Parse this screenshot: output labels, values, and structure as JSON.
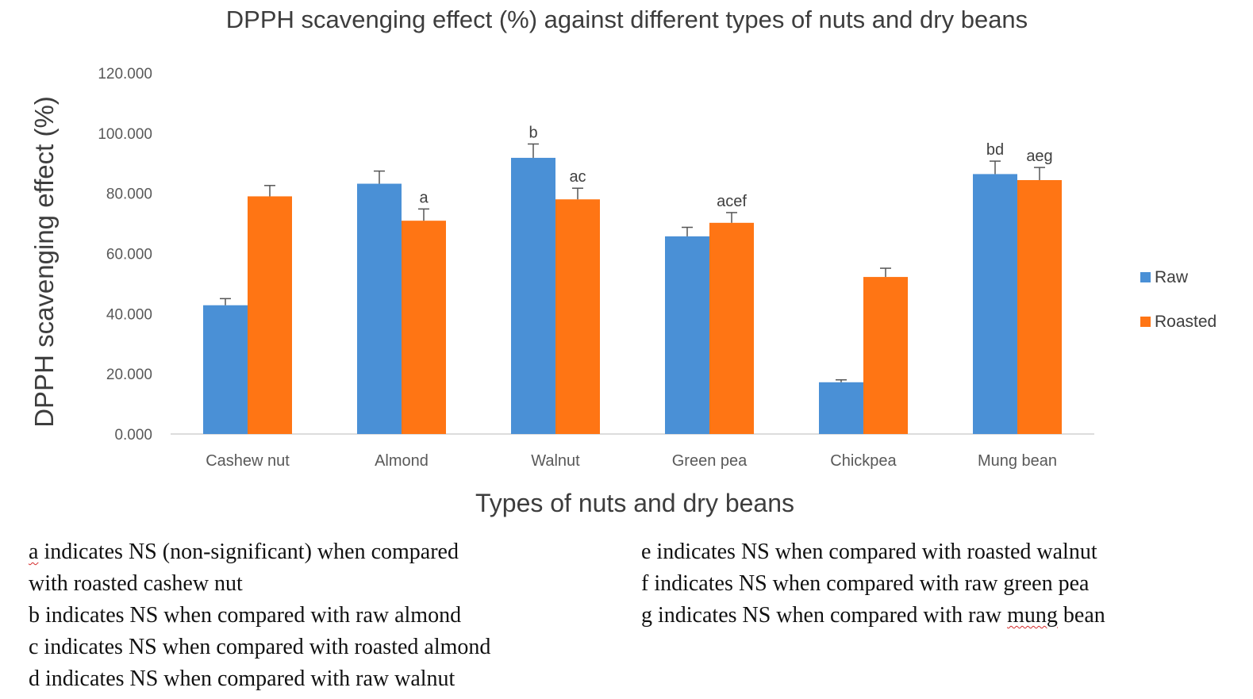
{
  "chart_data": {
    "type": "bar",
    "title": "DPPH scavenging effect (%) against different types of nuts and dry beans",
    "xlabel": "Types of nuts and dry beans",
    "ylabel": "DPPH scavenging effect (%)",
    "ylim": [
      0,
      120
    ],
    "yticks": [
      "0.000",
      "20.000",
      "40.000",
      "60.000",
      "80.000",
      "100.000",
      "120.000"
    ],
    "grid": false,
    "legend_position": "right",
    "categories": [
      "Cashew nut",
      "Almond",
      "Walnut",
      "Green pea",
      "Chickpea",
      "Mung bean"
    ],
    "series": [
      {
        "name": "Raw",
        "color": "#4a90d6",
        "values": [
          42.8,
          83.2,
          91.8,
          65.7,
          17.2,
          86.4
        ],
        "errors": [
          2.2,
          4.2,
          4.6,
          3.0,
          0.8,
          4.3
        ],
        "labels": [
          "",
          "",
          "b",
          "",
          "",
          "bd"
        ]
      },
      {
        "name": "Roasted",
        "color": "#ff7514",
        "values": [
          79.0,
          70.9,
          78.0,
          70.2,
          52.2,
          84.4
        ],
        "errors": [
          3.6,
          3.9,
          3.7,
          3.4,
          2.9,
          4.2
        ],
        "labels": [
          "",
          "a",
          "ac",
          "acef",
          "",
          "aeg"
        ]
      }
    ]
  },
  "notes": {
    "left": [
      {
        "prefix": "a",
        "text": " indicates NS (non-significant) when compared"
      },
      {
        "prefix": "",
        "text": "with roasted cashew nut"
      },
      {
        "prefix": "",
        "text": "b indicates NS when compared with raw almond"
      },
      {
        "prefix": "",
        "text": "c indicates NS when compared with roasted almond"
      },
      {
        "prefix": "",
        "text": "d indicates NS when compared with raw walnut"
      }
    ],
    "right": {
      "e": "e indicates NS when compared with roasted walnut",
      "f": "f indicates NS when compared with raw green pea",
      "g_before": "g indicates NS when compared with raw ",
      "g_mark": "mung",
      "g_after": " bean"
    }
  }
}
